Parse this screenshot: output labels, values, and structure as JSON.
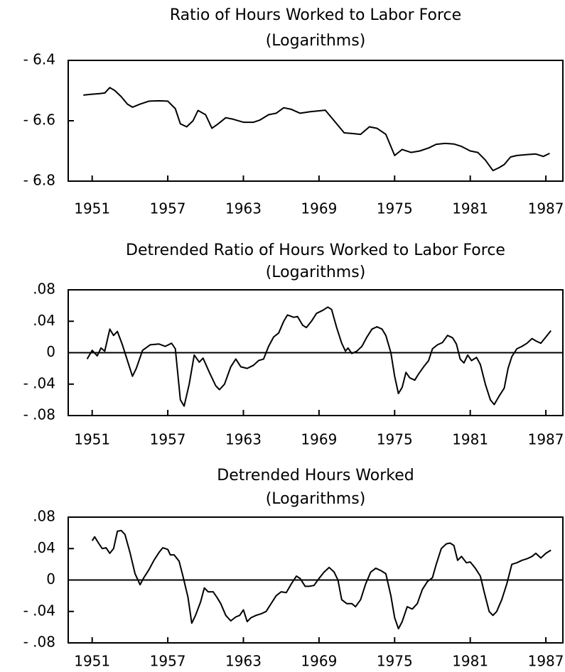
{
  "chart_data": [
    {
      "type": "line",
      "title": "Ratio of Hours Worked to Labor Force",
      "subtitle": "(Logarithms)",
      "x": [
        1950.3,
        1951,
        1951.6,
        1952,
        1952.4,
        1952.8,
        1953.3,
        1953.8,
        1954.2,
        1954.8,
        1955.5,
        1956.3,
        1957,
        1957.6,
        1958,
        1958.5,
        1959,
        1959.4,
        1960,
        1960.5,
        1961,
        1961.6,
        1962.2,
        1963,
        1963.8,
        1964.3,
        1965,
        1965.6,
        1966.2,
        1966.8,
        1967.5,
        1968.3,
        1969.5,
        1970.2,
        1971,
        1971.6,
        1972.3,
        1973,
        1973.6,
        1974.3,
        1975,
        1975.6,
        1976.3,
        1977,
        1977.7,
        1978.3,
        1979,
        1979.7,
        1980.3,
        1981,
        1981.6,
        1982.2,
        1982.8,
        1983.3,
        1983.7,
        1984.2,
        1984.7,
        1985.5,
        1986.2,
        1986.8,
        1987.3
      ],
      "series": [
        {
          "color": "#000000",
          "values": [
            -6.515,
            -6.512,
            -6.51,
            -6.508,
            -6.49,
            -6.5,
            -6.52,
            -6.545,
            -6.555,
            -6.545,
            -6.535,
            -6.534,
            -6.535,
            -6.56,
            -6.61,
            -6.62,
            -6.6,
            -6.566,
            -6.58,
            -6.625,
            -6.61,
            -6.59,
            -6.595,
            -6.605,
            -6.605,
            -6.598,
            -6.58,
            -6.575,
            -6.557,
            -6.562,
            -6.575,
            -6.57,
            -6.565,
            -6.6,
            -6.64,
            -6.642,
            -6.645,
            -6.62,
            -6.625,
            -6.645,
            -6.715,
            -6.695,
            -6.705,
            -6.7,
            -6.69,
            -6.678,
            -6.675,
            -6.677,
            -6.685,
            -6.7,
            -6.705,
            -6.73,
            -6.765,
            -6.755,
            -6.745,
            -6.72,
            -6.715,
            -6.712,
            -6.71,
            -6.718,
            -6.708
          ]
        }
      ],
      "xlim": [
        1949.1,
        1988.35
      ],
      "xticks": [
        1951,
        1957,
        1963,
        1969,
        1975,
        1981,
        1987
      ],
      "ylim": [
        -6.8,
        -6.4
      ],
      "yticks": [
        {
          "value": -6.4,
          "label": "- 6.4"
        },
        {
          "value": -6.6,
          "label": "- 6.6"
        },
        {
          "value": -6.8,
          "label": "- 6.8"
        }
      ]
    },
    {
      "type": "line",
      "title": "Detrended Ratio of Hours Worked to Labor Force",
      "subtitle": "(Logarithms)",
      "x": [
        1950.6,
        1951,
        1951.4,
        1951.7,
        1952,
        1952.4,
        1952.7,
        1953,
        1953.4,
        1953.8,
        1954.2,
        1954.5,
        1955,
        1955.6,
        1956.3,
        1956.8,
        1957.3,
        1957.6,
        1958,
        1958.3,
        1958.7,
        1959.1,
        1959.5,
        1959.8,
        1960.3,
        1960.8,
        1961.1,
        1961.5,
        1962,
        1962.4,
        1962.8,
        1963.3,
        1963.8,
        1964.2,
        1964.6,
        1965,
        1965.4,
        1965.8,
        1966.2,
        1966.5,
        1967,
        1967.3,
        1967.7,
        1968,
        1968.4,
        1968.8,
        1969.3,
        1969.7,
        1970,
        1970.4,
        1970.8,
        1971.1,
        1971.3,
        1971.6,
        1972,
        1972.4,
        1972.8,
        1973.2,
        1973.6,
        1974,
        1974.3,
        1974.7,
        1975,
        1975.3,
        1975.6,
        1975.9,
        1976.2,
        1976.6,
        1976.9,
        1977.3,
        1977.7,
        1978,
        1978.4,
        1978.8,
        1979.2,
        1979.6,
        1979.9,
        1980.2,
        1980.5,
        1980.8,
        1981.1,
        1981.5,
        1981.8,
        1982.2,
        1982.6,
        1982.9,
        1983.3,
        1983.7,
        1984,
        1984.3,
        1984.7,
        1985.1,
        1985.5,
        1985.9,
        1986.2,
        1986.6,
        1987,
        1987.4
      ],
      "series": [
        {
          "color": "#000000",
          "values": [
            -0.008,
            0.003,
            -0.004,
            0.006,
            0.002,
            0.03,
            0.022,
            0.027,
            0.01,
            -0.01,
            -0.03,
            -0.02,
            0.003,
            0.01,
            0.011,
            0.008,
            0.012,
            0.005,
            -0.06,
            -0.068,
            -0.04,
            -0.003,
            -0.012,
            -0.007,
            -0.025,
            -0.042,
            -0.047,
            -0.04,
            -0.018,
            -0.008,
            -0.018,
            -0.02,
            -0.016,
            -0.01,
            -0.008,
            0.008,
            0.02,
            0.025,
            0.04,
            0.048,
            0.045,
            0.046,
            0.035,
            0.032,
            0.04,
            0.05,
            0.054,
            0.058,
            0.055,
            0.032,
            0.012,
            0.002,
            0.006,
            -0.001,
            0.002,
            0.008,
            0.02,
            0.03,
            0.033,
            0.03,
            0.022,
            0,
            -0.03,
            -0.052,
            -0.044,
            -0.025,
            -0.032,
            -0.035,
            -0.027,
            -0.018,
            -0.01,
            0.005,
            0.01,
            0.013,
            0.022,
            0.019,
            0.011,
            -0.008,
            -0.013,
            -0.003,
            -0.01,
            -0.006,
            -0.015,
            -0.04,
            -0.06,
            -0.066,
            -0.055,
            -0.045,
            -0.02,
            -0.005,
            0.005,
            0.008,
            0.012,
            0.018,
            0.015,
            0.012,
            0.02,
            0.028
          ]
        }
      ],
      "xlim": [
        1949.1,
        1988.35
      ],
      "xticks": [
        1951,
        1957,
        1963,
        1969,
        1975,
        1981,
        1987
      ],
      "ylim": [
        -0.08,
        0.08
      ],
      "reference_line": 0,
      "yticks": [
        {
          "value": 0.08,
          "label": ".08"
        },
        {
          "value": 0.04,
          "label": ".04"
        },
        0,
        {
          "value": -0.04,
          "label": "- .04"
        },
        {
          "value": -0.08,
          "label": "- .08"
        }
      ]
    },
    {
      "type": "line",
      "title": "Detrended Hours Worked",
      "subtitle": "(Logarithms)",
      "x": [
        1951,
        1951.2,
        1951.5,
        1951.8,
        1952.1,
        1952.4,
        1952.7,
        1953,
        1953.3,
        1953.6,
        1954,
        1954.4,
        1954.8,
        1955.1,
        1955.5,
        1955.9,
        1956.3,
        1956.6,
        1957,
        1957.2,
        1957.5,
        1957.9,
        1958.2,
        1958.6,
        1958.9,
        1959.2,
        1959.6,
        1959.9,
        1960.2,
        1960.6,
        1960.9,
        1961.2,
        1961.6,
        1962,
        1962.4,
        1962.7,
        1963,
        1963.3,
        1963.6,
        1964,
        1964.4,
        1964.8,
        1965.2,
        1965.6,
        1966,
        1966.4,
        1966.8,
        1967.2,
        1967.5,
        1967.9,
        1968.2,
        1968.6,
        1969,
        1969.4,
        1969.8,
        1970.2,
        1970.5,
        1970.8,
        1971.2,
        1971.6,
        1971.9,
        1972.3,
        1972.7,
        1973.1,
        1973.5,
        1973.9,
        1974.3,
        1974.7,
        1975,
        1975.3,
        1975.6,
        1976,
        1976.4,
        1976.8,
        1977.2,
        1977.6,
        1978,
        1978.3,
        1978.7,
        1979.1,
        1979.4,
        1979.7,
        1980,
        1980.3,
        1980.7,
        1981,
        1981.4,
        1981.8,
        1982.1,
        1982.5,
        1982.8,
        1983.1,
        1983.5,
        1983.9,
        1984.3,
        1984.7,
        1985.1,
        1985.5,
        1985.9,
        1986.2,
        1986.6,
        1987,
        1987.4
      ],
      "series": [
        {
          "color": "#000000",
          "values": [
            0.05,
            0.055,
            0.047,
            0.04,
            0.041,
            0.034,
            0.04,
            0.062,
            0.063,
            0.058,
            0.035,
            0.008,
            -0.006,
            0.003,
            0.013,
            0.025,
            0.035,
            0.041,
            0.039,
            0.032,
            0.032,
            0.024,
            0.005,
            -0.022,
            -0.055,
            -0.045,
            -0.028,
            -0.01,
            -0.015,
            -0.015,
            -0.022,
            -0.03,
            -0.045,
            -0.052,
            -0.047,
            -0.045,
            -0.038,
            -0.053,
            -0.048,
            -0.045,
            -0.043,
            -0.04,
            -0.03,
            -0.02,
            -0.015,
            -0.016,
            -0.005,
            0.005,
            0.002,
            -0.008,
            -0.008,
            -0.007,
            0.002,
            0.01,
            0.016,
            0.01,
            0,
            -0.025,
            -0.03,
            -0.03,
            -0.034,
            -0.025,
            -0.005,
            0.01,
            0.015,
            0.012,
            0.008,
            -0.02,
            -0.048,
            -0.062,
            -0.053,
            -0.034,
            -0.037,
            -0.03,
            -0.012,
            -0.002,
            0.003,
            0.02,
            0.04,
            0.046,
            0.047,
            0.044,
            0.025,
            0.03,
            0.022,
            0.023,
            0.015,
            0.005,
            -0.015,
            -0.04,
            -0.045,
            -0.04,
            -0.025,
            -0.005,
            0.02,
            0.022,
            0.025,
            0.027,
            0.03,
            0.034,
            0.028,
            0.034,
            0.038
          ]
        }
      ],
      "xlim": [
        1949.1,
        1988.35
      ],
      "xticks": [
        1951,
        1957,
        1963,
        1969,
        1975,
        1981,
        1987
      ],
      "ylim": [
        -0.08,
        0.08
      ],
      "reference_line": 0,
      "yticks": [
        {
          "value": 0.08,
          "label": ".08"
        },
        {
          "value": 0.04,
          "label": ".04"
        },
        0,
        {
          "value": -0.04,
          "label": "- .04"
        },
        {
          "value": -0.08,
          "label": "- .08"
        }
      ]
    }
  ]
}
